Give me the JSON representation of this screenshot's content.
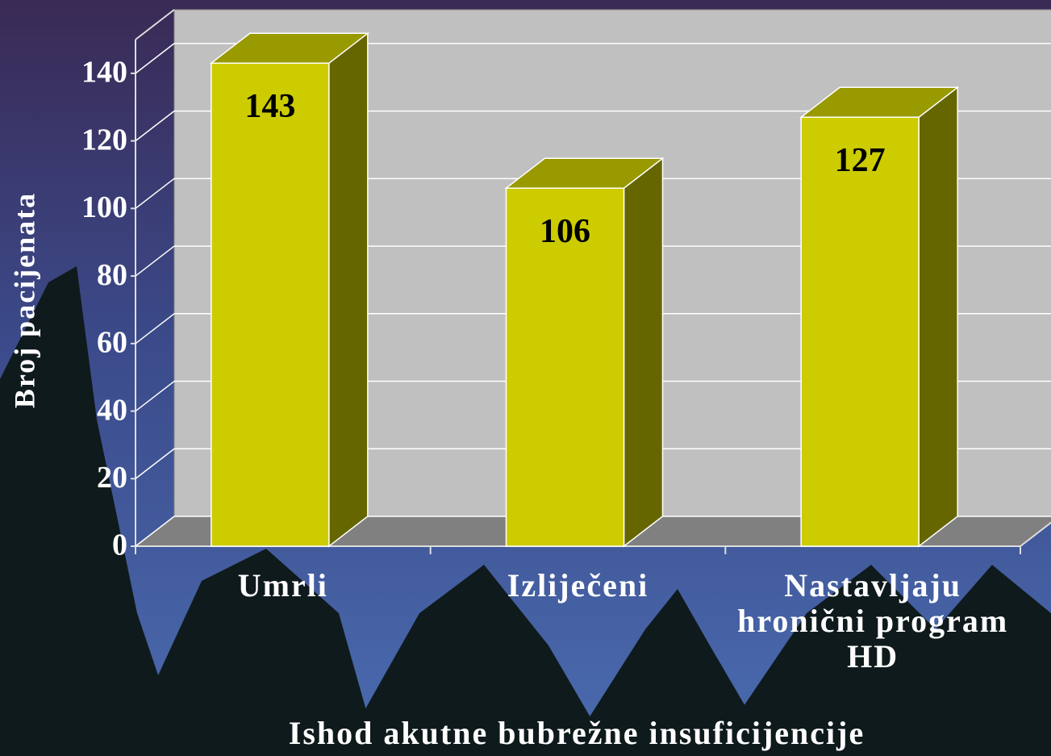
{
  "chart_data": {
    "type": "bar3d",
    "x_label": "Ishod akutne bubrežne insuficijencije",
    "y_label": "Broj pacijenata",
    "categories": [
      "Umrli",
      "Izliječeni",
      "Nastavljaju hronični program HD"
    ],
    "values": [
      143,
      106,
      127
    ],
    "colors": {
      "front": "#cccc00",
      "top": "#999900",
      "side": "#666600"
    },
    "ylim": [
      0,
      150
    ],
    "yticks": [
      0,
      20,
      40,
      60,
      80,
      100,
      120,
      140
    ],
    "grid": true
  }
}
